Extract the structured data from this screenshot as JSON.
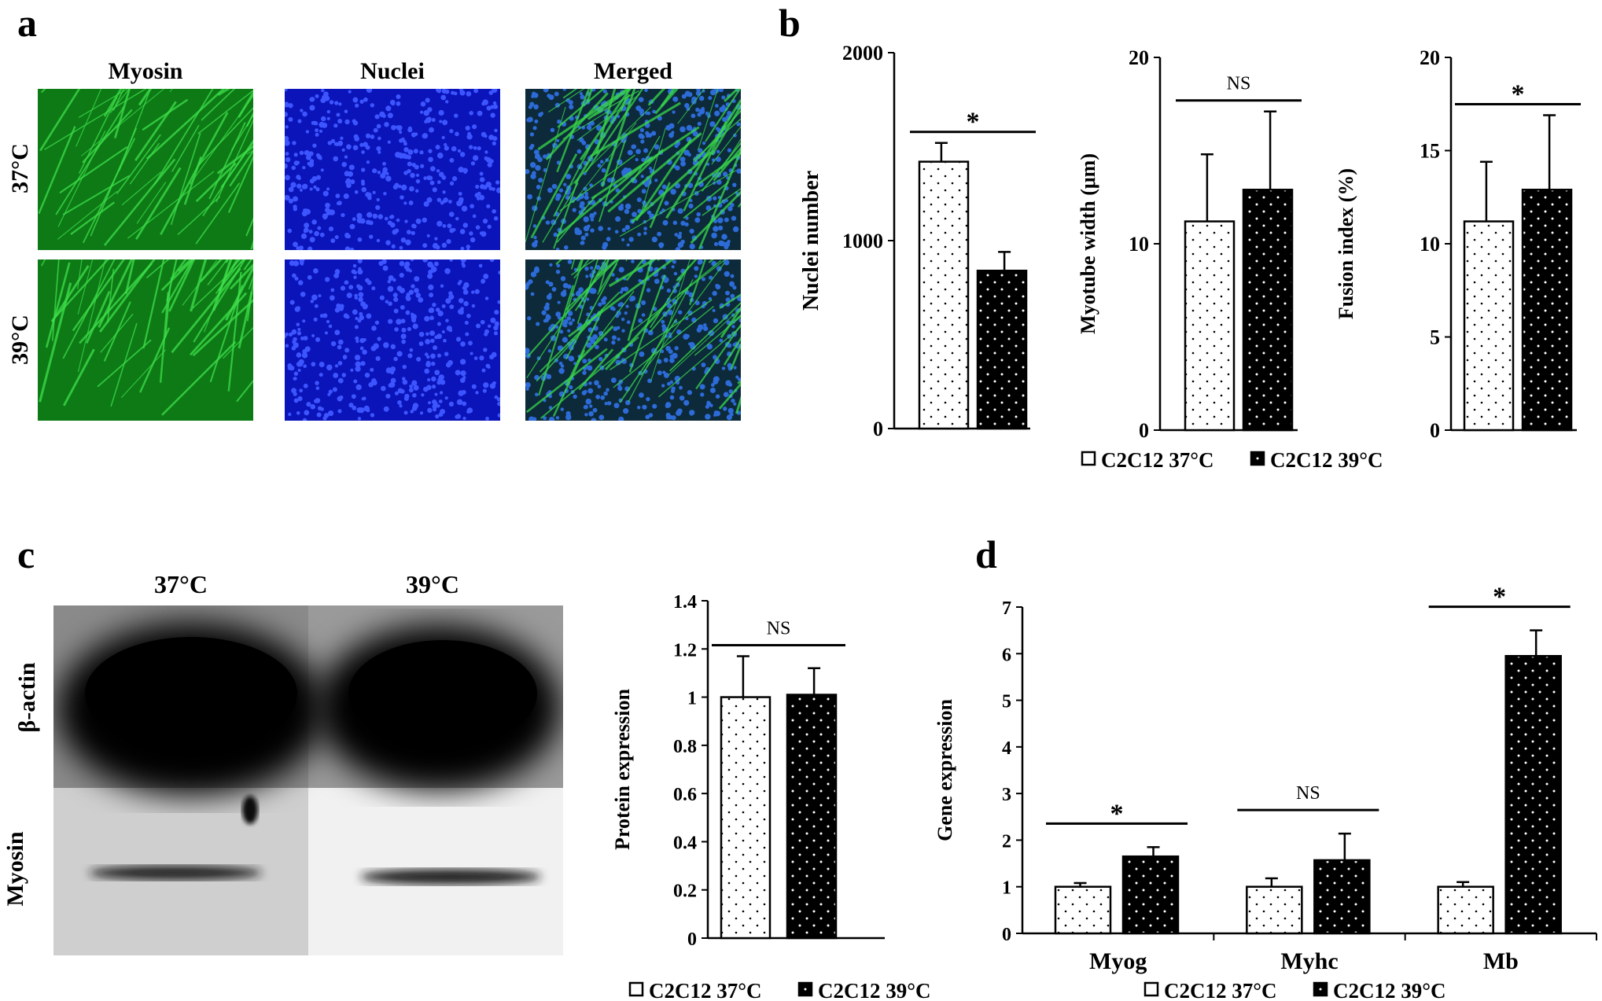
{
  "panels": {
    "a": "a",
    "b": "b",
    "c": "c",
    "d": "d"
  },
  "panel_a": {
    "columns": [
      "Myosin",
      "Nuclei",
      "Merged"
    ],
    "rows": [
      "37°C",
      "39°C"
    ]
  },
  "panel_c_blot": {
    "columns": [
      "37°C",
      "39°C"
    ],
    "rows": [
      "β-actin",
      "Myosin"
    ]
  },
  "colors": {
    "myosin_green": "#1fb52a",
    "nuclei_blue": "#1a2ee0",
    "bar_37": "#ffffff",
    "bar_39": "#000000"
  },
  "chart_data": [
    {
      "id": "b1",
      "type": "bar",
      "categories": [
        ""
      ],
      "series": [
        {
          "name": "C2C12 37°C",
          "values": [
            1420
          ],
          "errors": [
            100
          ]
        },
        {
          "name": "C2C12 39°C",
          "values": [
            840
          ],
          "errors": [
            100
          ]
        }
      ],
      "ylabel": "Nuclei number",
      "ylim": [
        0,
        2000
      ],
      "yticks": [
        "0",
        "1000",
        "2000"
      ],
      "annotations": [
        "*"
      ]
    },
    {
      "id": "b2",
      "type": "bar",
      "categories": [
        ""
      ],
      "series": [
        {
          "name": "C2C12 37°C",
          "values": [
            11.2
          ],
          "errors": [
            3.6
          ]
        },
        {
          "name": "C2C12 39°C",
          "values": [
            12.9
          ],
          "errors": [
            4.2
          ]
        }
      ],
      "ylabel": "Myotube width (μm)",
      "ylim": [
        0,
        20
      ],
      "yticks": [
        "0",
        "10",
        "20"
      ],
      "annotations": [
        "NS"
      ]
    },
    {
      "id": "b3",
      "type": "bar",
      "categories": [
        ""
      ],
      "series": [
        {
          "name": "C2C12 37°C",
          "values": [
            11.2
          ],
          "errors": [
            3.2
          ]
        },
        {
          "name": "C2C12 39°C",
          "values": [
            12.9
          ],
          "errors": [
            4.0
          ]
        }
      ],
      "ylabel": "Fusion index (%)",
      "ylim": [
        0,
        20
      ],
      "yticks": [
        "0",
        "5",
        "10",
        "15",
        "20"
      ],
      "annotations": [
        "*"
      ]
    },
    {
      "id": "c",
      "type": "bar",
      "categories": [
        ""
      ],
      "series": [
        {
          "name": "C2C12 37°C",
          "values": [
            1.0
          ],
          "errors": [
            0.17
          ]
        },
        {
          "name": "C2C12 39°C",
          "values": [
            1.01
          ],
          "errors": [
            0.11
          ]
        }
      ],
      "ylabel": "Protein expression",
      "ylim": [
        0,
        1.4
      ],
      "yticks": [
        "0",
        "0.2",
        "0.4",
        "0.6",
        "0.8",
        "1",
        "1.2",
        "1.4"
      ],
      "annotations": [
        "NS"
      ]
    },
    {
      "id": "d",
      "type": "bar",
      "categories": [
        "Myog",
        "Myhc",
        "Mb"
      ],
      "series": [
        {
          "name": "C2C12 37°C",
          "values": [
            1.0,
            1.0,
            1.0
          ],
          "errors": [
            0.08,
            0.18,
            0.1
          ]
        },
        {
          "name": "C2C12 39°C",
          "values": [
            1.65,
            1.57,
            5.95
          ],
          "errors": [
            0.2,
            0.57,
            0.55
          ]
        }
      ],
      "ylabel": "Gene expression",
      "ylim": [
        0,
        7
      ],
      "yticks": [
        "0",
        "1",
        "2",
        "3",
        "4",
        "5",
        "6",
        "7"
      ],
      "annotations": [
        "*",
        "NS",
        "*"
      ]
    }
  ],
  "legends": {
    "b": [
      "C2C12 37°C",
      "C2C12 39°C"
    ],
    "c": [
      "C2C12 37°C",
      "C2C12 39°C"
    ],
    "d": [
      "C2C12 37°C",
      "C2C12 39°C"
    ]
  }
}
